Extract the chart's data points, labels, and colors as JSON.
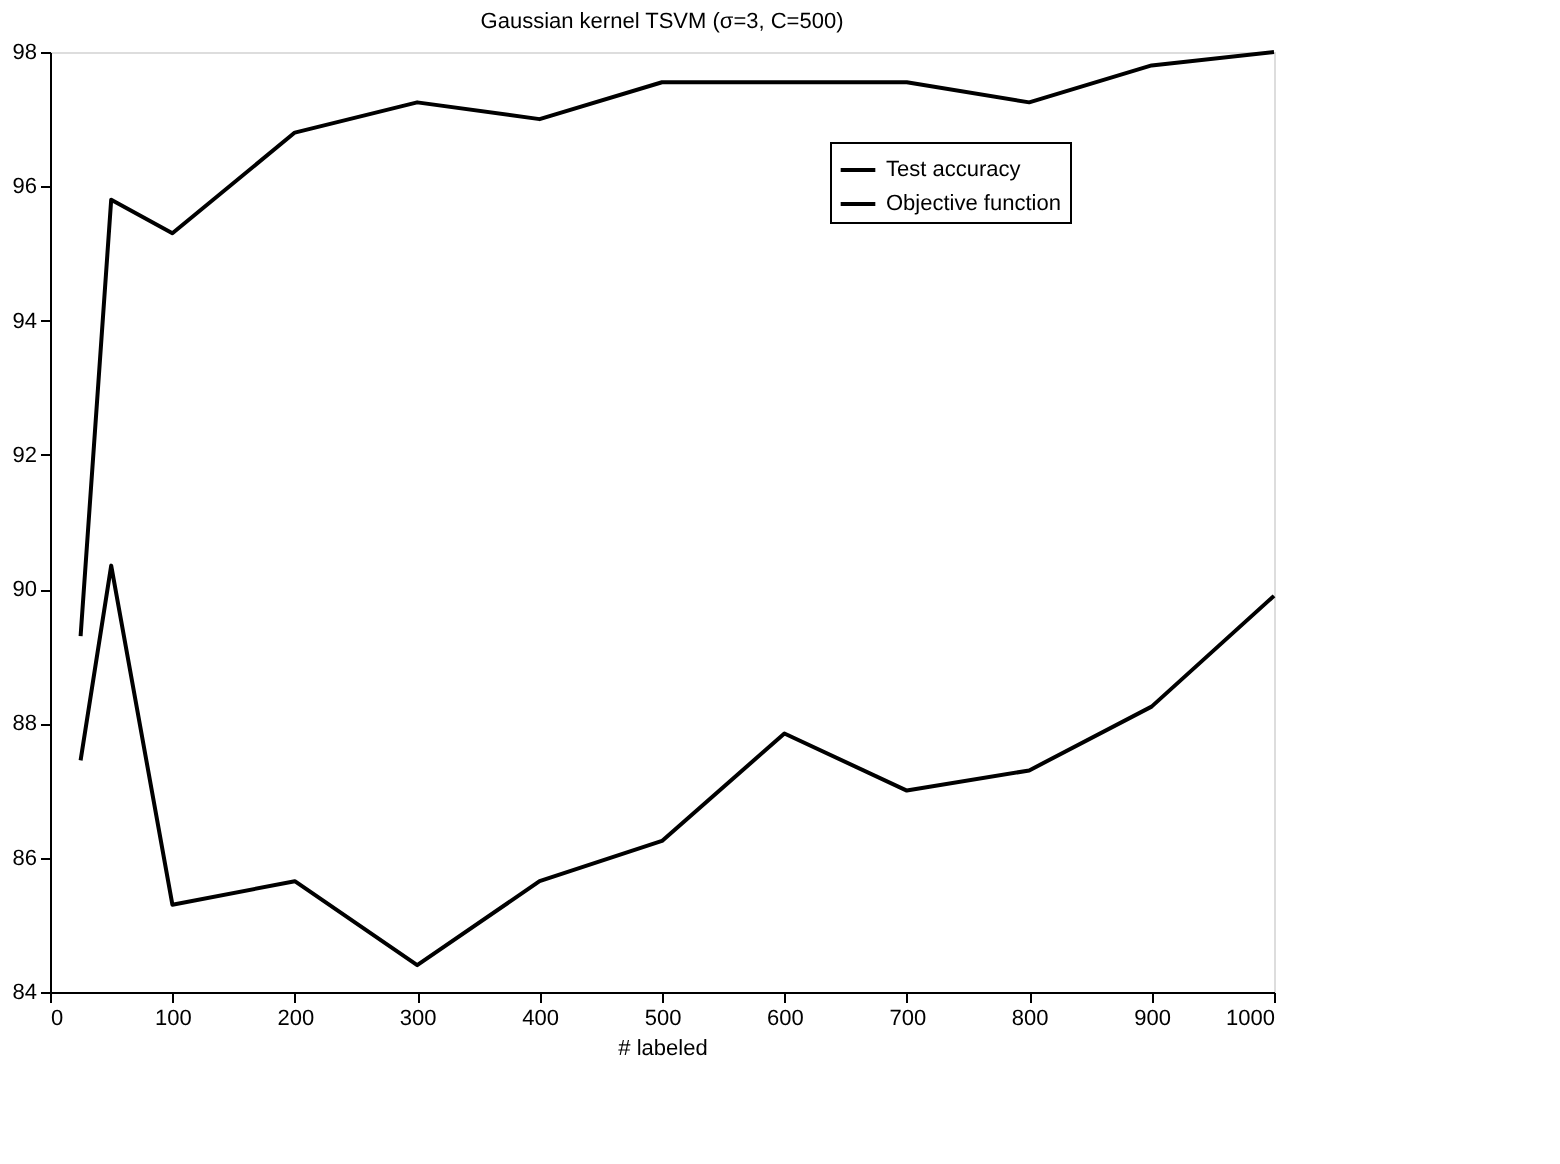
{
  "chart_data": {
    "type": "line",
    "title": "Gaussian kernel TSVM (σ=3, C=500)",
    "xlabel": "# labeled",
    "x": [
      25,
      50,
      100,
      200,
      300,
      400,
      500,
      600,
      700,
      800,
      900,
      1000
    ],
    "series": [
      {
        "name": "Test accuracy",
        "color": "#000000",
        "values": [
          89.3,
          95.8,
          95.3,
          96.8,
          97.25,
          97.0,
          97.55,
          97.55,
          97.55,
          97.25,
          97.8,
          98.0
        ]
      },
      {
        "name": "Objective function",
        "color": "#000000",
        "values": [
          87.45,
          90.35,
          85.3,
          85.65,
          84.4,
          85.65,
          86.25,
          87.85,
          87.0,
          87.3,
          88.25,
          89.9
        ]
      }
    ],
    "xlim": [
      0,
      1000
    ],
    "xticks": [
      0,
      100,
      200,
      300,
      400,
      500,
      600,
      700,
      800,
      900,
      1000
    ],
    "ylim": [
      84,
      98
    ],
    "yticks": [
      84,
      86,
      88,
      90,
      92,
      94,
      96,
      98
    ],
    "grid": false,
    "legend": "top right",
    "marker": "none",
    "line_style": "solid"
  }
}
